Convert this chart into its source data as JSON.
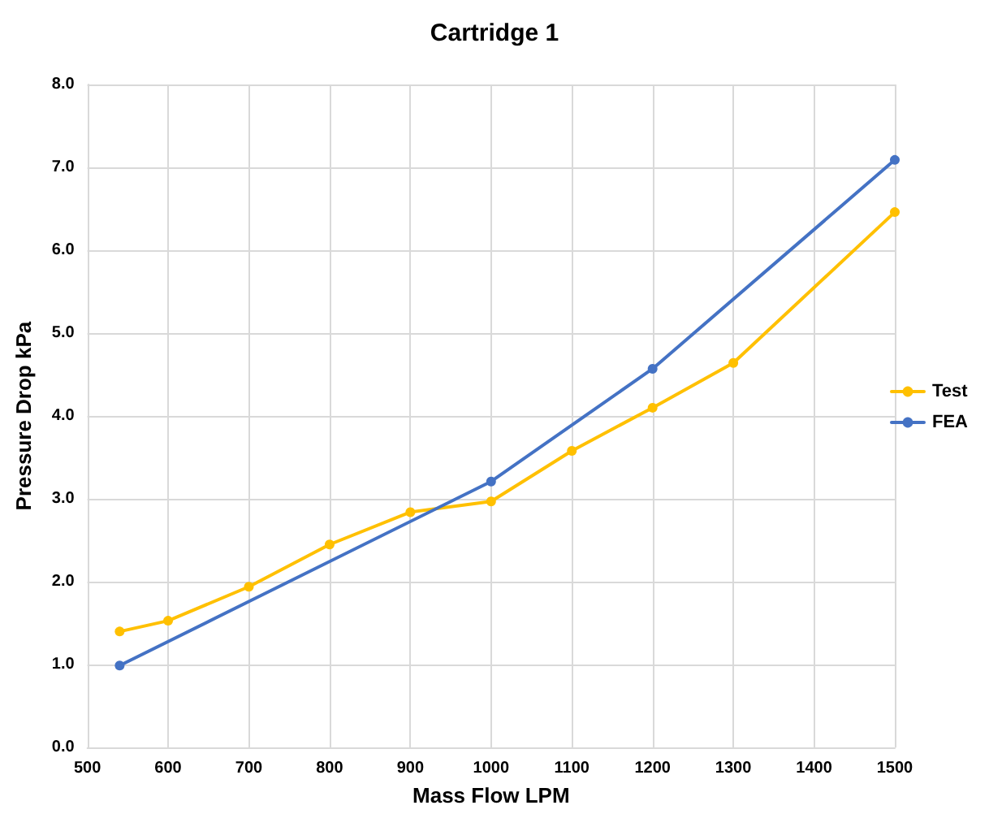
{
  "chart_data": {
    "type": "line",
    "title": "Cartridge 1",
    "xlabel": "Mass Flow LPM",
    "ylabel": "Pressure Drop kPa",
    "series": [
      {
        "name": "Test",
        "color": "#ffc000",
        "x": [
          540,
          600,
          700,
          800,
          900,
          1000,
          1100,
          1200,
          1300,
          1500
        ],
        "values": [
          1.4,
          1.53,
          1.94,
          2.45,
          2.84,
          2.97,
          3.58,
          4.1,
          4.64,
          6.46
        ]
      },
      {
        "name": "FEA",
        "color": "#4472c4",
        "x": [
          540,
          1000,
          1200,
          1500
        ],
        "values": [
          0.99,
          3.21,
          4.57,
          7.09
        ]
      }
    ],
    "xlim": [
      500,
      1500
    ],
    "xticks": [
      500,
      600,
      700,
      800,
      900,
      1000,
      1100,
      1200,
      1300,
      1400,
      1500
    ],
    "ylim": [
      0,
      8
    ],
    "yticks": [
      {
        "value": 0,
        "label": "0.0"
      },
      {
        "value": 1,
        "label": "1.0"
      },
      {
        "value": 2,
        "label": "2.0"
      },
      {
        "value": 3,
        "label": "3.0"
      },
      {
        "value": 4,
        "label": "4.0"
      },
      {
        "value": 5,
        "label": "5.0"
      },
      {
        "value": 6,
        "label": "6.0"
      },
      {
        "value": 7,
        "label": "7.0"
      },
      {
        "value": 8,
        "label": "8.0"
      }
    ],
    "grid": true,
    "legend": "right",
    "marker": "circle",
    "line_style": "solid"
  }
}
